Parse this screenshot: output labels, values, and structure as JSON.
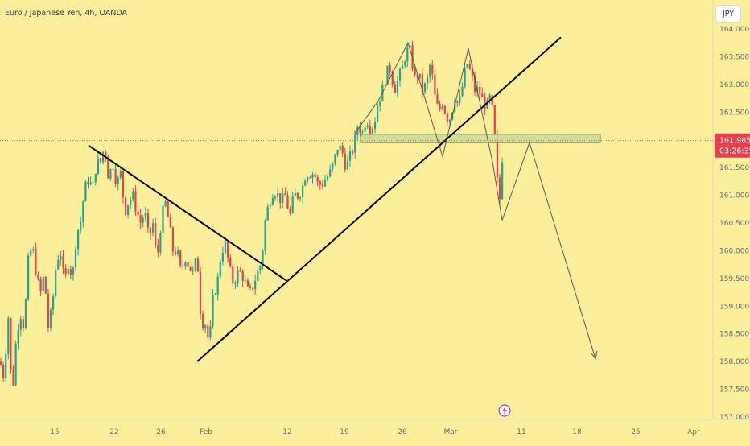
{
  "chart_data": {
    "type": "candlestick",
    "title": "Euro / Japanese Yen, 4h, OANDA",
    "currency": "JPY",
    "last_price": "161.985",
    "countdown": "03:26:35",
    "y_ticks": [
      "164.000",
      "163.500",
      "163.000",
      "162.500",
      "162.000",
      "161.500",
      "161.000",
      "160.500",
      "160.000",
      "159.500",
      "159.000",
      "158.500",
      "158.000",
      "157.500",
      "157.000"
    ],
    "y_range": [
      157.0,
      164.0
    ],
    "x_ticks": [
      "15",
      "22",
      "26",
      "Feb",
      "12",
      "19",
      "26",
      "Mar",
      "11",
      "18",
      "25",
      "Apr"
    ],
    "price_path": [
      [
        0,
        158.0
      ],
      [
        5,
        157.7
      ],
      [
        10,
        158.9
      ],
      [
        15,
        157.3
      ],
      [
        20,
        158.4
      ],
      [
        25,
        158.9
      ],
      [
        30,
        158.6
      ],
      [
        35,
        159.8
      ],
      [
        40,
        160.1
      ],
      [
        45,
        159.6
      ],
      [
        50,
        159.2
      ],
      [
        55,
        159.6
      ],
      [
        60,
        158.6
      ],
      [
        65,
        159.0
      ],
      [
        70,
        159.8
      ],
      [
        75,
        160.0
      ],
      [
        80,
        159.4
      ],
      [
        85,
        159.8
      ],
      [
        90,
        159.5
      ],
      [
        95,
        160.3
      ],
      [
        100,
        160.5
      ],
      [
        105,
        161.1
      ],
      [
        110,
        161.3
      ],
      [
        115,
        161.1
      ],
      [
        120,
        161.6
      ],
      [
        125,
        161.6
      ],
      [
        130,
        161.9
      ],
      [
        135,
        161.3
      ],
      [
        140,
        161.6
      ],
      [
        145,
        161.2
      ],
      [
        150,
        161.4
      ],
      [
        155,
        160.7
      ],
      [
        160,
        160.9
      ],
      [
        165,
        161.0
      ],
      [
        170,
        160.7
      ],
      [
        175,
        160.5
      ],
      [
        180,
        160.7
      ],
      [
        185,
        160.2
      ],
      [
        190,
        160.5
      ],
      [
        195,
        159.8
      ],
      [
        200,
        160.5
      ],
      [
        205,
        160.9
      ],
      [
        210,
        160.5
      ],
      [
        215,
        160.0
      ],
      [
        220,
        160.0
      ],
      [
        225,
        159.6
      ],
      [
        230,
        159.9
      ],
      [
        235,
        159.7
      ],
      [
        240,
        159.6
      ],
      [
        245,
        159.9
      ],
      [
        250,
        158.7
      ],
      [
        255,
        158.7
      ],
      [
        260,
        158.3
      ],
      [
        265,
        159.2
      ],
      [
        270,
        159.4
      ],
      [
        275,
        160.0
      ],
      [
        280,
        160.1
      ],
      [
        285,
        159.7
      ],
      [
        290,
        159.4
      ],
      [
        295,
        159.6
      ],
      [
        300,
        159.6
      ],
      [
        305,
        159.4
      ],
      [
        310,
        159.2
      ],
      [
        315,
        159.4
      ],
      [
        320,
        159.6
      ],
      [
        325,
        159.8
      ],
      [
        330,
        160.6
      ],
      [
        335,
        160.9
      ],
      [
        340,
        161.1
      ],
      [
        345,
        161.0
      ],
      [
        350,
        160.9
      ],
      [
        355,
        161.0
      ],
      [
        360,
        160.6
      ],
      [
        365,
        161.0
      ],
      [
        370,
        161.0
      ],
      [
        375,
        161.1
      ],
      [
        380,
        161.4
      ],
      [
        385,
        161.4
      ],
      [
        390,
        161.4
      ],
      [
        395,
        161.2
      ],
      [
        400,
        161.2
      ],
      [
        405,
        161.3
      ],
      [
        410,
        161.4
      ],
      [
        415,
        161.6
      ],
      [
        420,
        161.9
      ],
      [
        425,
        161.8
      ],
      [
        430,
        161.5
      ],
      [
        435,
        161.7
      ],
      [
        440,
        161.9
      ],
      [
        445,
        162.3
      ],
      [
        450,
        162.1
      ],
      [
        455,
        162.4
      ],
      [
        460,
        162.2
      ],
      [
        465,
        162.3
      ],
      [
        470,
        162.7
      ],
      [
        475,
        162.9
      ],
      [
        480,
        163.2
      ],
      [
        485,
        163.3
      ],
      [
        490,
        162.9
      ],
      [
        495,
        163.1
      ],
      [
        500,
        163.3
      ],
      [
        505,
        163.6
      ],
      [
        510,
        163.6
      ],
      [
        515,
        163.1
      ],
      [
        520,
        163.2
      ],
      [
        525,
        162.9
      ],
      [
        530,
        163.0
      ],
      [
        535,
        163.4
      ],
      [
        540,
        162.8
      ],
      [
        545,
        162.5
      ],
      [
        550,
        162.7
      ],
      [
        555,
        162.4
      ],
      [
        560,
        162.4
      ],
      [
        565,
        162.8
      ],
      [
        570,
        162.6
      ],
      [
        575,
        163.0
      ],
      [
        580,
        163.4
      ],
      [
        585,
        163.2
      ],
      [
        590,
        162.9
      ],
      [
        595,
        162.9
      ],
      [
        600,
        162.7
      ],
      [
        605,
        162.6
      ],
      [
        610,
        162.8
      ],
      [
        615,
        162.0
      ],
      [
        620,
        160.7
      ],
      [
        625,
        161.9
      ]
    ],
    "annotations": {
      "descending_trendline": {
        "from": [
          "20 Jan",
          161.9
        ],
        "to": [
          "9 Feb",
          159.45
        ]
      },
      "ascending_trendline": {
        "from": [
          "31 Jan",
          158.0
        ],
        "to": [
          "15 Mar",
          163.85
        ]
      },
      "support_zone": {
        "top": 162.1,
        "bottom": 161.95
      },
      "projection_path": [
        [
          590,
          162.9
        ],
        [
          600,
          162.9
        ],
        [
          610,
          162.5
        ],
        [
          620,
          160.5
        ],
        [
          635,
          161.95
        ],
        [
          670,
          160.5
        ],
        [
          740,
          158.05
        ]
      ],
      "last_price_line": 161.985
    }
  }
}
